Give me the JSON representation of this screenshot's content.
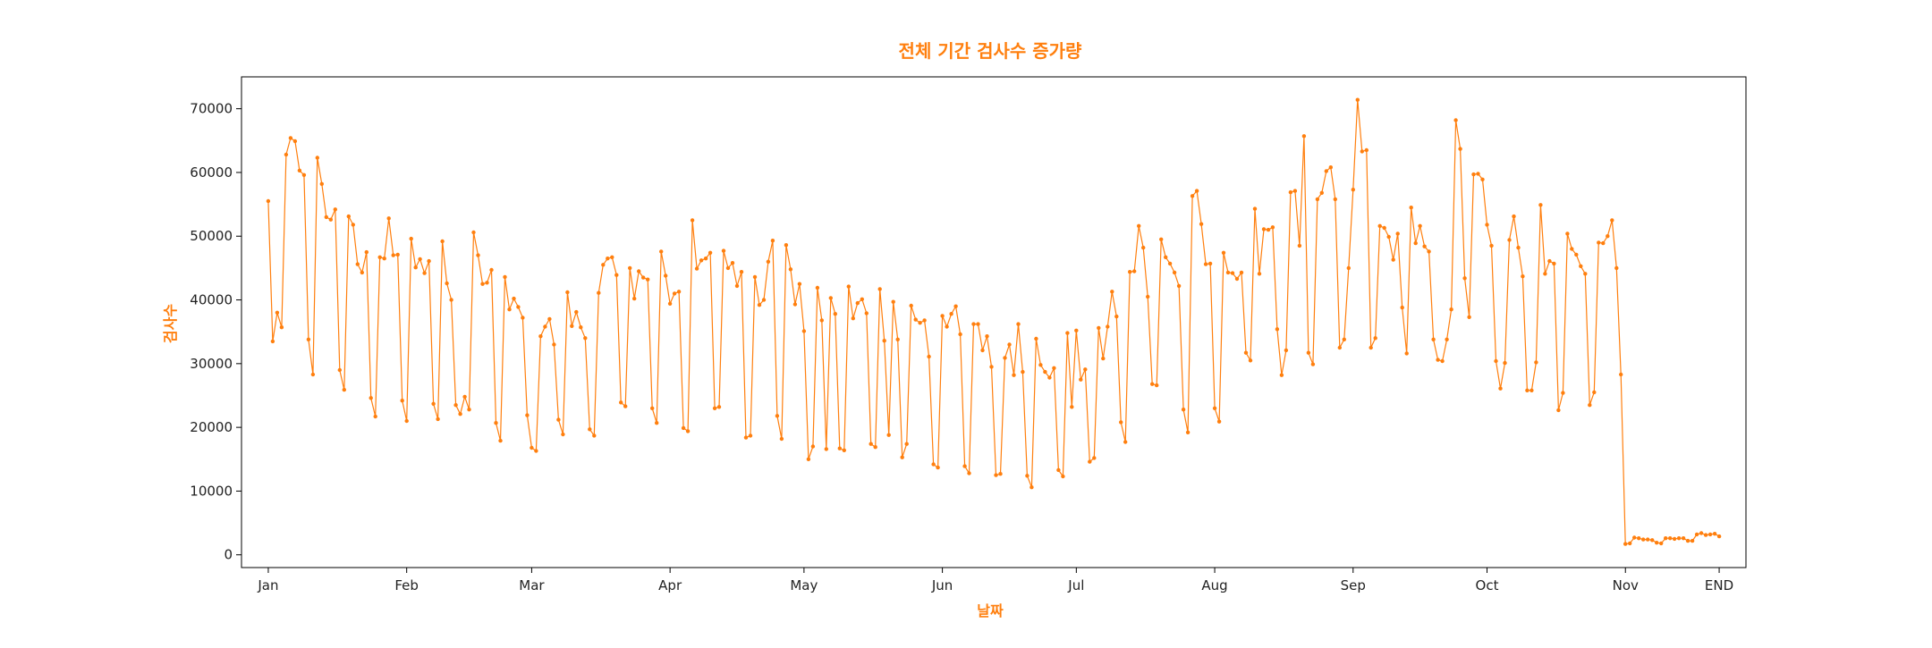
{
  "chart_data": {
    "type": "line",
    "title": "전체 기간 검사수 증가량",
    "xlabel": "날짜",
    "ylabel": "검사수",
    "accent_color": "#ff7f0e",
    "x_ticks": [
      "Jan",
      "Feb",
      "Mar",
      "Apr",
      "May",
      "Jun",
      "Jul",
      "Aug",
      "Sep",
      "Oct",
      "Nov",
      "END"
    ],
    "x_tick_days": [
      0,
      31,
      59,
      90,
      120,
      151,
      181,
      212,
      243,
      273,
      304,
      325
    ],
    "y_ticks": [
      0,
      10000,
      20000,
      30000,
      40000,
      50000,
      60000,
      70000
    ],
    "ylim": [
      -2000,
      75000
    ],
    "xlim": [
      -6,
      331
    ],
    "grid": false,
    "series": [
      {
        "values": [
          55500,
          33500,
          38000,
          35700,
          62800,
          65400,
          64900,
          60300,
          59600,
          33800,
          28300,
          62300,
          58200,
          53000,
          52600,
          54200,
          29000,
          25900,
          53100,
          51800,
          45600,
          44300,
          47500,
          24600,
          21700,
          46700,
          46500,
          52800,
          47000,
          47100,
          24200,
          21000,
          49600,
          45100,
          46400,
          44200,
          46100,
          23700,
          21300,
          49200,
          42600,
          40000,
          23500,
          22100,
          24800,
          22800,
          50600,
          47000,
          42500,
          42700,
          44700,
          20700,
          17900,
          43600,
          38500,
          40200,
          38900,
          37200,
          21900,
          16800,
          16300,
          34300,
          35800,
          37000,
          33000,
          21200,
          18900,
          41200,
          35900,
          38100,
          35700,
          34000,
          19700,
          18700,
          41100,
          45500,
          46500,
          46700,
          43900,
          23900,
          23300,
          45000,
          40200,
          44500,
          43500,
          43200,
          23000,
          20700,
          47600,
          43800,
          39400,
          41000,
          41300,
          19900,
          19400,
          52500,
          44900,
          46200,
          46500,
          47400,
          23000,
          23200,
          47700,
          45000,
          45800,
          42200,
          44400,
          18400,
          18700,
          43600,
          39200,
          40000,
          46000,
          49300,
          21800,
          18200,
          48600,
          44800,
          39300,
          42500,
          35100,
          15000,
          17000,
          41900,
          36800,
          16600,
          40300,
          37800,
          16700,
          16400,
          42100,
          37100,
          39500,
          40100,
          37900,
          17400,
          16900,
          41700,
          33600,
          18800,
          39700,
          33800,
          15300,
          17400,
          39100,
          36900,
          36400,
          36800,
          31100,
          14200,
          13700,
          37500,
          35800,
          37800,
          39000,
          34600,
          13900,
          12800,
          36200,
          36200,
          32100,
          34300,
          29500,
          12500,
          12700,
          30900,
          33000,
          28200,
          36200,
          28700,
          12400,
          10600,
          33900,
          29800,
          28700,
          27800,
          29300,
          13300,
          12300,
          34800,
          23200,
          35200,
          27500,
          29100,
          14600,
          15200,
          35600,
          30800,
          35800,
          41300,
          37400,
          20800,
          17700,
          44400,
          44500,
          51600,
          48200,
          40500,
          26800,
          26600,
          49500,
          46700,
          45700,
          44300,
          42200,
          22800,
          19200,
          56300,
          57100,
          51900,
          45600,
          45700,
          23000,
          20900,
          47400,
          44300,
          44200,
          43300,
          44300,
          31700,
          30500,
          54300,
          44100,
          51100,
          51000,
          51400,
          35400,
          28200,
          32100,
          56900,
          57100,
          48500,
          65700,
          31700,
          29900,
          55800,
          56800,
          60200,
          60800,
          55800,
          32500,
          33800,
          45000,
          57300,
          71400,
          63300,
          63500,
          32500,
          34000,
          51600,
          51300,
          49900,
          46300,
          50400,
          38800,
          31600,
          54500,
          48900,
          51600,
          48400,
          47600,
          33800,
          30600,
          30400,
          33800,
          38500,
          68200,
          63700,
          43400,
          37300,
          59700,
          59800,
          58900,
          51800,
          48500,
          30400,
          26100,
          30100,
          49400,
          53100,
          48200,
          43700,
          25800,
          25800,
          30200,
          54900,
          44100,
          46100,
          45700,
          22700,
          25400,
          50400,
          48000,
          47100,
          45300,
          44100,
          23500,
          25500,
          49000,
          48900,
          50000,
          52500,
          45000,
          28300,
          1700,
          1800,
          2700,
          2600,
          2400,
          2400,
          2300,
          1900,
          1800,
          2600,
          2600,
          2500,
          2600,
          2600,
          2200,
          2200,
          3200,
          3400,
          3100,
          3200,
          3300,
          2900
        ]
      }
    ]
  }
}
